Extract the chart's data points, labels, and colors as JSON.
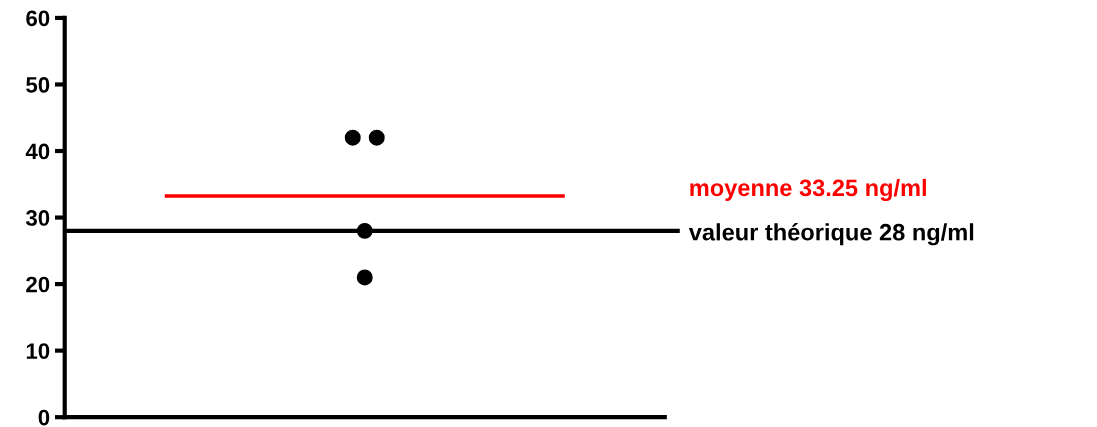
{
  "chart_data": {
    "type": "scatter",
    "categories": [
      null
    ],
    "series": [
      {
        "color": "#000000",
        "x": [
          null,
          null,
          null,
          null
        ],
        "values": [
          42,
          42,
          28,
          21
        ]
      }
    ],
    "ylim": [
      0,
      60
    ],
    "yticks": [
      0,
      10,
      20,
      30,
      40,
      50,
      60
    ],
    "grid": false,
    "legend": false,
    "marker": "circle",
    "tick_labels": "y",
    "ref_lines": [
      {
        "axis": "y",
        "value": 33.25,
        "label": "moyenne 33.25 ng/ml",
        "color": "#ff0000",
        "line_style": "solid"
      },
      {
        "axis": "y",
        "value": 28,
        "label": "valeur théorique 28 ng/ml",
        "color": "#000000",
        "line_style": "solid"
      }
    ]
  }
}
